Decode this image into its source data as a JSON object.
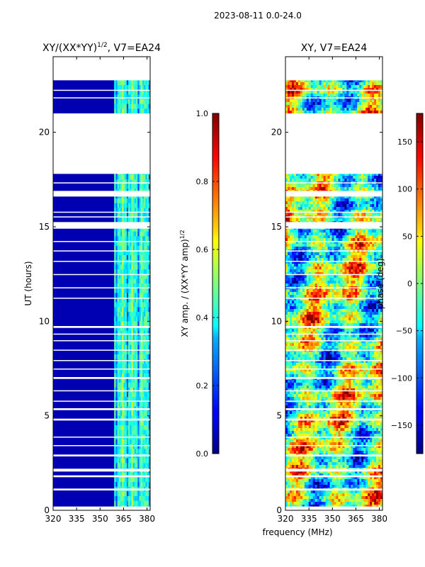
{
  "figure": {
    "suptitle": "2023-08-11 0.0-24.0",
    "xlabel_shared": "frequency (MHz)"
  },
  "chart_data": [
    {
      "type": "heatmap",
      "title_main": "XY/(XX*YY)",
      "title_exp": "1/2",
      "title_tail": ", V7=EA24",
      "ylabel": "UT (hours)",
      "xlim": [
        320,
        382
      ],
      "ylim": [
        0,
        24
      ],
      "xticks": [
        "320",
        "335",
        "350",
        "365",
        "380"
      ],
      "xtick_values": [
        320,
        335,
        350,
        365,
        380
      ],
      "yticks": [
        "0",
        "5",
        "10",
        "15",
        "20"
      ],
      "ytick_values": [
        0,
        5,
        10,
        15,
        20
      ],
      "colorbar": {
        "label_main": "XY amp. / (XX*YY amp)",
        "label_exp": "1/2",
        "range": [
          0.0,
          1.0
        ],
        "ticks": [
          "0.0",
          "0.2",
          "0.4",
          "0.6",
          "0.8",
          "1.0"
        ],
        "tick_values": [
          0.0,
          0.2,
          0.4,
          0.6,
          0.8,
          1.0
        ]
      },
      "description": "Normalized XY amplitude: mostly ~0.05 below 360 MHz, ~0.3-0.5 between 360 and 382 MHz"
    },
    {
      "type": "heatmap",
      "title_main": "XY, V7=EA24",
      "ylabel": "",
      "xlim": [
        320,
        382
      ],
      "ylim": [
        0,
        24
      ],
      "xticks": [
        "320",
        "335",
        "350",
        "365",
        "380"
      ],
      "xtick_values": [
        320,
        335,
        350,
        365,
        380
      ],
      "yticks": [
        "0",
        "5",
        "10",
        "15",
        "20"
      ],
      "ytick_values": [
        0,
        5,
        10,
        15,
        20
      ],
      "colorbar": {
        "label_main": "phase (deg)",
        "range": [
          -180,
          180
        ],
        "ticks": [
          "−150",
          "−100",
          "−50",
          "0",
          "50",
          "100",
          "150"
        ],
        "tick_values": [
          -150,
          -100,
          -50,
          0,
          50,
          100,
          150
        ]
      },
      "description": "XY phase, spanning the full -180 to 180 degree range"
    }
  ],
  "gaps_ut": [
    [
      22.75,
      24.0
    ],
    [
      19.5,
      21.0
    ],
    [
      0.0,
      0.2
    ],
    [
      1.05,
      1.15
    ],
    [
      1.75,
      1.85
    ],
    [
      2.05,
      2.2
    ],
    [
      2.85,
      2.95
    ],
    [
      3.4,
      3.45
    ],
    [
      3.85,
      3.9
    ],
    [
      4.75,
      4.85
    ],
    [
      5.3,
      5.4
    ],
    [
      5.75,
      5.8
    ],
    [
      6.3,
      6.35
    ],
    [
      6.95,
      7.05
    ],
    [
      7.45,
      7.5
    ],
    [
      7.9,
      7.95
    ],
    [
      8.45,
      8.5
    ],
    [
      8.95,
      9.0
    ],
    [
      9.3,
      9.35
    ],
    [
      9.65,
      9.75
    ],
    [
      11.2,
      11.25
    ],
    [
      11.75,
      11.8
    ],
    [
      12.45,
      12.5
    ],
    [
      13.15,
      13.2
    ],
    [
      13.7,
      13.75
    ],
    [
      14.2,
      14.25
    ],
    [
      14.9,
      15.25
    ],
    [
      15.5,
      15.55
    ],
    [
      15.75,
      15.8
    ],
    [
      16.6,
      16.9
    ],
    [
      17.3,
      17.35
    ],
    [
      17.8,
      19.5
    ],
    [
      20.5,
      20.6
    ],
    [
      20.0,
      20.05
    ],
    [
      21.8,
      21.85
    ],
    [
      22.2,
      22.25
    ]
  ]
}
